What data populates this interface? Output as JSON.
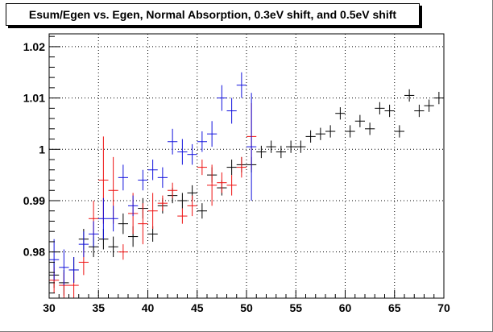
{
  "chart_data": {
    "type": "scatter",
    "title": "Esum/Egen vs. Egen, Normal Absorption, 0.3eV shift, and 0.5eV shift",
    "xlabel": "",
    "ylabel": "",
    "xlim": [
      30,
      70
    ],
    "ylim": [
      0.971,
      1.0225
    ],
    "grid": true,
    "legend": "none",
    "x_ticks": [
      30,
      35,
      40,
      45,
      50,
      55,
      60,
      65,
      70
    ],
    "y_ticks": [
      0.98,
      0.99,
      1,
      1.01,
      1.02
    ],
    "x_tick_labels": [
      "30",
      "35",
      "40",
      "45",
      "50",
      "55",
      "60",
      "65",
      "70"
    ],
    "y_tick_labels": [
      "0.98",
      "0.99",
      "1",
      "1.01",
      "1.02"
    ],
    "series": [
      {
        "color": "#000000",
        "x_half_width": 0.5,
        "points": [
          {
            "x": 30.5,
            "y": 0.9755,
            "err": 0.0025
          },
          {
            "x": 31.5,
            "y": 0.974,
            "err": 0.0025
          },
          {
            "x": 32.5,
            "y": 0.9765,
            "err": 0.0025
          },
          {
            "x": 33.5,
            "y": 0.9825,
            "err": 0.002
          },
          {
            "x": 34.5,
            "y": 0.981,
            "err": 0.002
          },
          {
            "x": 35.5,
            "y": 0.9825,
            "err": 0.002
          },
          {
            "x": 36.5,
            "y": 0.981,
            "err": 0.002
          },
          {
            "x": 37.5,
            "y": 0.9855,
            "err": 0.002
          },
          {
            "x": 38.5,
            "y": 0.983,
            "err": 0.002
          },
          {
            "x": 39.5,
            "y": 0.9885,
            "err": 0.002
          },
          {
            "x": 40.5,
            "y": 0.9835,
            "err": 0.0015
          },
          {
            "x": 41.5,
            "y": 0.989,
            "err": 0.0015
          },
          {
            "x": 42.5,
            "y": 0.991,
            "err": 0.0015
          },
          {
            "x": 43.5,
            "y": 0.99,
            "err": 0.0015
          },
          {
            "x": 44.5,
            "y": 0.9915,
            "err": 0.0015
          },
          {
            "x": 45.5,
            "y": 0.988,
            "err": 0.0015
          },
          {
            "x": 46.5,
            "y": 0.995,
            "err": 0.0015
          },
          {
            "x": 47.5,
            "y": 0.9925,
            "err": 0.0015
          },
          {
            "x": 48.5,
            "y": 0.9965,
            "err": 0.0015
          },
          {
            "x": 49.5,
            "y": 0.997,
            "err": 0.0015
          },
          {
            "x": 50.5,
            "y": 0.997,
            "err": 0.0015
          },
          {
            "x": 51.5,
            "y": 0.9995,
            "err": 0.0012
          },
          {
            "x": 52.5,
            "y": 1.0005,
            "err": 0.0012
          },
          {
            "x": 53.5,
            "y": 0.9995,
            "err": 0.0012
          },
          {
            "x": 54.5,
            "y": 1.0005,
            "err": 0.0012
          },
          {
            "x": 55.5,
            "y": 1.0005,
            "err": 0.0012
          },
          {
            "x": 56.5,
            "y": 1.0025,
            "err": 0.0012
          },
          {
            "x": 57.5,
            "y": 1.003,
            "err": 0.0012
          },
          {
            "x": 58.5,
            "y": 1.0035,
            "err": 0.0012
          },
          {
            "x": 59.5,
            "y": 1.007,
            "err": 0.0012
          },
          {
            "x": 60.5,
            "y": 1.0035,
            "err": 0.0012
          },
          {
            "x": 61.5,
            "y": 1.0055,
            "err": 0.0012
          },
          {
            "x": 62.5,
            "y": 1.004,
            "err": 0.0012
          },
          {
            "x": 63.5,
            "y": 1.008,
            "err": 0.0012
          },
          {
            "x": 64.5,
            "y": 1.0075,
            "err": 0.0012
          },
          {
            "x": 65.5,
            "y": 1.0035,
            "err": 0.0012
          },
          {
            "x": 66.5,
            "y": 1.0105,
            "err": 0.0012
          },
          {
            "x": 67.5,
            "y": 1.0075,
            "err": 0.0012
          },
          {
            "x": 68.5,
            "y": 1.0085,
            "err": 0.0012
          },
          {
            "x": 69.5,
            "y": 1.01,
            "err": 0.0012
          }
        ]
      },
      {
        "color": "#ee1111",
        "x_half_width": 0.5,
        "points": [
          {
            "x": 30.5,
            "y": 0.9745,
            "err": 0.0025
          },
          {
            "x": 31.5,
            "y": 0.9735,
            "err": 0.0025
          },
          {
            "x": 32.5,
            "y": 0.9735,
            "err": 0.0025
          },
          {
            "x": 33.5,
            "y": 0.978,
            "err": 0.0025
          },
          {
            "x": 34.5,
            "y": 0.9865,
            "err": 0.0035
          },
          {
            "x": 35.5,
            "y": 0.994,
            "err": 0.0085
          },
          {
            "x": 36.5,
            "y": 0.992,
            "err": 0.0065
          },
          {
            "x": 37.5,
            "y": 0.98,
            "err": 0.0015
          },
          {
            "x": 38.5,
            "y": 0.9875,
            "err": 0.004
          },
          {
            "x": 39.5,
            "y": 0.9855,
            "err": 0.004
          },
          {
            "x": 40.5,
            "y": 0.988,
            "err": 0.0035
          },
          {
            "x": 41.5,
            "y": 0.9895,
            "err": 0.0015
          },
          {
            "x": 42.5,
            "y": 0.992,
            "err": 0.0015
          },
          {
            "x": 43.5,
            "y": 0.987,
            "err": 0.0015
          },
          {
            "x": 44.5,
            "y": 0.989,
            "err": 0.002
          },
          {
            "x": 45.5,
            "y": 0.9965,
            "err": 0.0015
          },
          {
            "x": 46.5,
            "y": 0.993,
            "err": 0.004
          },
          {
            "x": 47.5,
            "y": 0.9935,
            "err": 0.002
          },
          {
            "x": 48.5,
            "y": 0.993,
            "err": 0.002
          },
          {
            "x": 49.5,
            "y": 0.9965,
            "err": 0.002
          },
          {
            "x": 50.5,
            "y": 1.0025,
            "err": 0.0065
          }
        ]
      },
      {
        "color": "#1111dd",
        "x_half_width": 0.5,
        "points": [
          {
            "x": 30.5,
            "y": 0.9785,
            "err": 0.004
          },
          {
            "x": 31.5,
            "y": 0.977,
            "err": 0.0035
          },
          {
            "x": 32.5,
            "y": 0.9765,
            "err": 0.0025
          },
          {
            "x": 33.5,
            "y": 0.9815,
            "err": 0.0025
          },
          {
            "x": 34.5,
            "y": 0.9835,
            "err": 0.0025
          },
          {
            "x": 35.5,
            "y": 0.9865,
            "err": 0.004
          },
          {
            "x": 36.5,
            "y": 0.9865,
            "err": 0.0025
          },
          {
            "x": 37.5,
            "y": 0.9945,
            "err": 0.0025
          },
          {
            "x": 38.5,
            "y": 0.989,
            "err": 0.002
          },
          {
            "x": 39.5,
            "y": 0.994,
            "err": 0.002
          },
          {
            "x": 40.5,
            "y": 0.996,
            "err": 0.002
          },
          {
            "x": 41.5,
            "y": 0.9945,
            "err": 0.002
          },
          {
            "x": 42.5,
            "y": 1.0015,
            "err": 0.0025
          },
          {
            "x": 43.5,
            "y": 0.9995,
            "err": 0.0025
          },
          {
            "x": 44.5,
            "y": 0.999,
            "err": 0.002
          },
          {
            "x": 45.5,
            "y": 1.0015,
            "err": 0.002
          },
          {
            "x": 46.5,
            "y": 1.003,
            "err": 0.0025
          },
          {
            "x": 47.5,
            "y": 1.01,
            "err": 0.0025
          },
          {
            "x": 48.5,
            "y": 1.0075,
            "err": 0.0025
          },
          {
            "x": 49.5,
            "y": 1.0125,
            "err": 0.0025
          },
          {
            "x": 50.5,
            "y": 1.0005,
            "err": 0.0105
          }
        ]
      }
    ]
  }
}
